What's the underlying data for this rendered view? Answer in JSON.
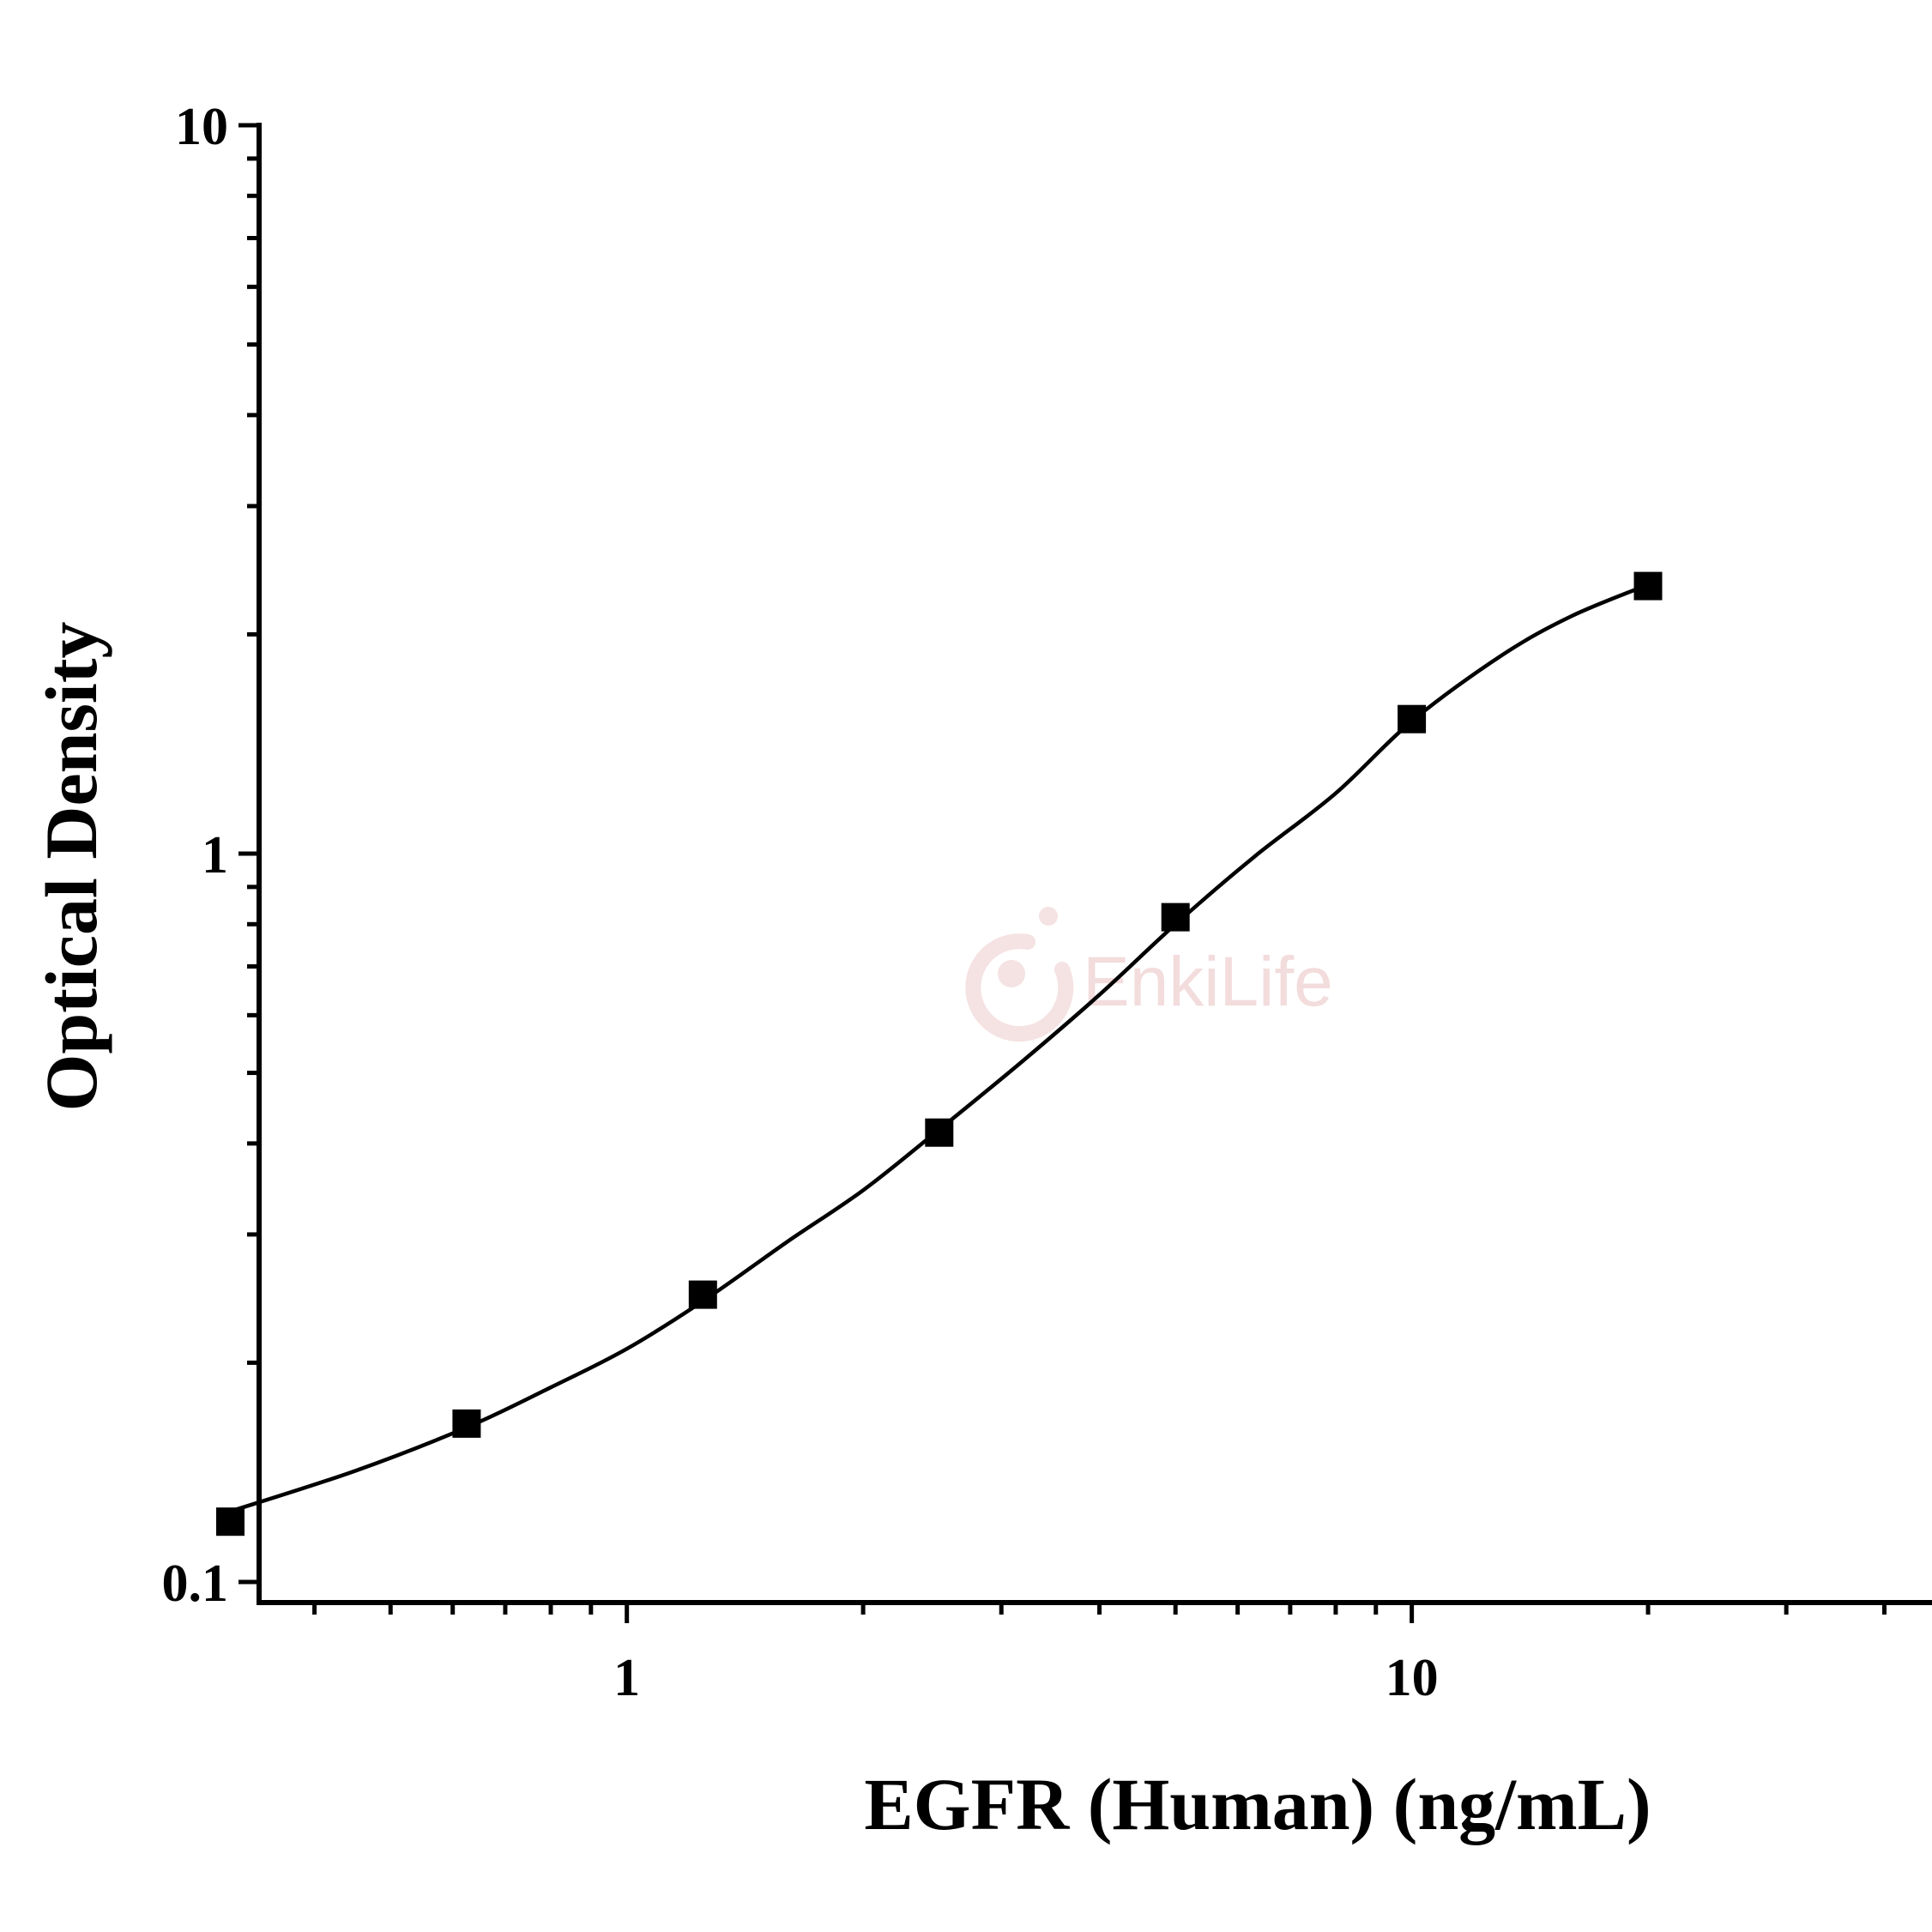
{
  "chart_data": {
    "type": "scatter",
    "xlabel": "EGFR (Human) (ng/mL)",
    "ylabel": "Optical Density",
    "x_scale": "log",
    "y_scale": "log",
    "xlim": [
      0.34,
      46
    ],
    "ylim": [
      0.1,
      10
    ],
    "x_ticks": [
      {
        "value": 1,
        "label": "1"
      },
      {
        "value": 10,
        "label": "10"
      }
    ],
    "y_ticks": [
      {
        "value": 0.1,
        "label": "0.1"
      },
      {
        "value": 1,
        "label": "1"
      },
      {
        "value": 10,
        "label": "10"
      }
    ],
    "grid": false,
    "series": [
      {
        "color": "#000000",
        "marker": "square",
        "x": [
          0.3125,
          0.625,
          1.25,
          2.5,
          5,
          10,
          20
        ],
        "y": [
          0.121,
          0.165,
          0.248,
          0.414,
          0.818,
          1.53,
          2.33
        ]
      }
    ],
    "fit_curve": {
      "x": [
        0.3125,
        0.45,
        0.625,
        0.8,
        1.0,
        1.25,
        1.6,
        2.0,
        2.5,
        3.2,
        4.0,
        5.0,
        6.3,
        8.0,
        10.0,
        13.0,
        16.0,
        20.0
      ],
      "y": [
        0.125,
        0.142,
        0.163,
        0.185,
        0.209,
        0.243,
        0.293,
        0.345,
        0.418,
        0.52,
        0.64,
        0.8,
        0.99,
        1.21,
        1.52,
        1.87,
        2.12,
        2.34
      ]
    },
    "watermark": {
      "text": "EnkiLife",
      "color": "#f3dcdc"
    }
  }
}
